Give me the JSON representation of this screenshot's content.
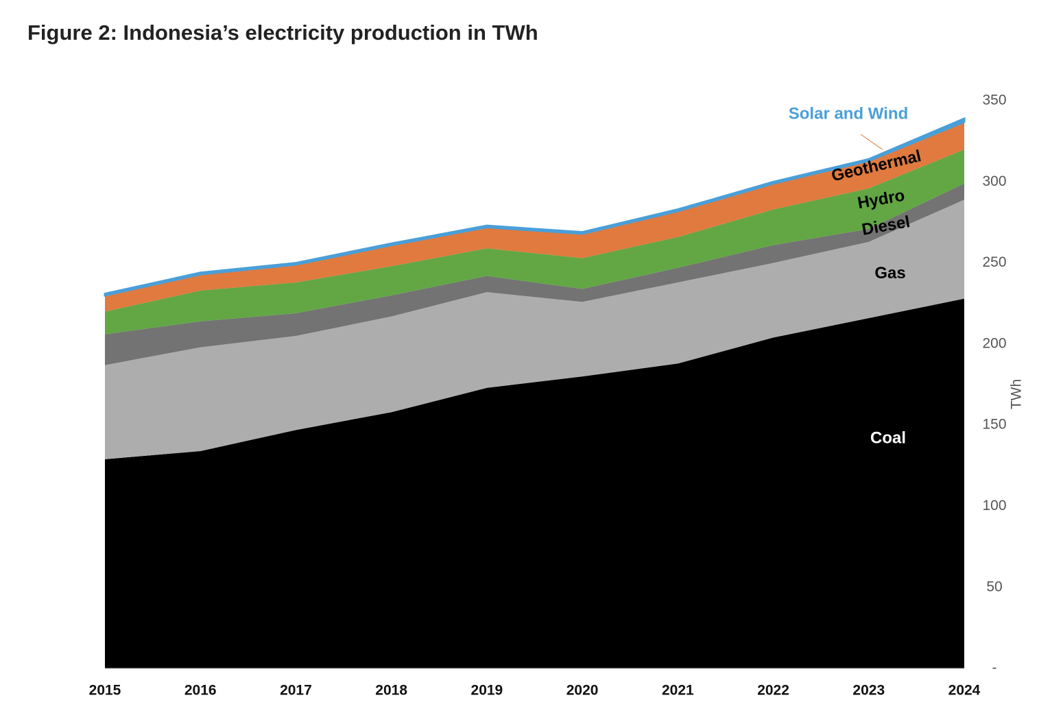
{
  "chart_data": {
    "type": "stacked_area",
    "title": "Figure 2: Indonesia’s electricity production in TWh",
    "y_label": "TWh",
    "categories": [
      "2015",
      "2016",
      "2017",
      "2018",
      "2019",
      "2020",
      "2021",
      "2022",
      "2023",
      "2024"
    ],
    "series": [
      {
        "name": "Coal",
        "color": "#000000",
        "label_color": "#ffffff",
        "values": [
          129,
          134,
          147,
          158,
          173,
          180,
          188,
          204,
          216,
          228
        ]
      },
      {
        "name": "Gas",
        "color": "#adadad",
        "label_color": "#000000",
        "values": [
          58,
          64,
          58,
          59,
          59,
          46,
          50,
          46,
          47,
          61
        ]
      },
      {
        "name": "Diesel",
        "color": "#737373",
        "label_color": "#000000",
        "values": [
          19,
          16,
          14,
          13,
          10,
          8,
          9,
          11,
          8,
          10
        ]
      },
      {
        "name": "Hydro",
        "color": "#62a744",
        "label_color": "#000000",
        "values": [
          14,
          19,
          19,
          18,
          17,
          19,
          19,
          22,
          25,
          21
        ]
      },
      {
        "name": "Geothermal",
        "color": "#e07a3f",
        "label_color": "#000000",
        "values": [
          10,
          10,
          11,
          13,
          13,
          15,
          16,
          16,
          17,
          17
        ]
      },
      {
        "name": "Solar and Wind",
        "color": "#4a9fd8",
        "label_color": "#4a9fd8",
        "values": [
          1,
          1,
          1,
          1,
          1,
          1,
          1,
          1,
          1,
          2
        ]
      }
    ],
    "ylim": [
      0,
      350
    ],
    "yticks": [
      {
        "value": 0,
        "label": "-"
      },
      50,
      100,
      150,
      200,
      250,
      300,
      350
    ],
    "y_axis_side": "right",
    "grid": false
  }
}
